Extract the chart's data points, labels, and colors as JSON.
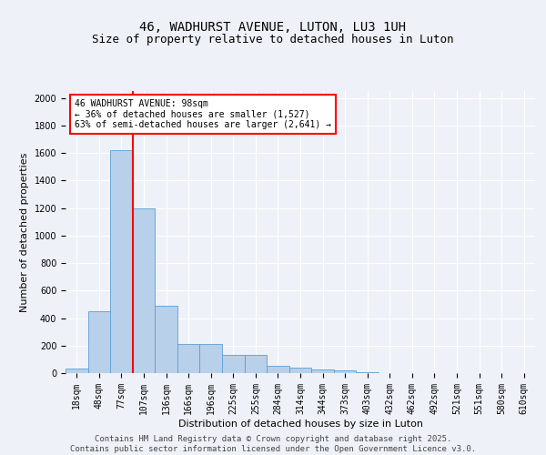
{
  "title_line1": "46, WADHURST AVENUE, LUTON, LU3 1UH",
  "title_line2": "Size of property relative to detached houses in Luton",
  "xlabel": "Distribution of detached houses by size in Luton",
  "ylabel": "Number of detached properties",
  "categories": [
    "18sqm",
    "48sqm",
    "77sqm",
    "107sqm",
    "136sqm",
    "166sqm",
    "196sqm",
    "225sqm",
    "255sqm",
    "284sqm",
    "314sqm",
    "344sqm",
    "373sqm",
    "403sqm",
    "432sqm",
    "462sqm",
    "492sqm",
    "521sqm",
    "551sqm",
    "580sqm",
    "610sqm"
  ],
  "values": [
    35,
    450,
    1620,
    1200,
    490,
    210,
    210,
    135,
    130,
    50,
    40,
    25,
    18,
    5,
    0,
    0,
    0,
    0,
    0,
    0,
    0
  ],
  "bar_color": "#b8d0ea",
  "bar_edge_color": "#5a9fd4",
  "vline_x_idx": 2,
  "vline_color": "red",
  "annotation_text": "46 WADHURST AVENUE: 98sqm\n← 36% of detached houses are smaller (1,527)\n63% of semi-detached houses are larger (2,641) →",
  "annotation_box_color": "white",
  "annotation_box_edge_color": "red",
  "ylim": [
    0,
    2050
  ],
  "yticks": [
    0,
    200,
    400,
    600,
    800,
    1000,
    1200,
    1400,
    1600,
    1800,
    2000
  ],
  "background_color": "#eef2f8",
  "grid_color": "white",
  "footer_line1": "Contains HM Land Registry data © Crown copyright and database right 2025.",
  "footer_line2": "Contains public sector information licensed under the Open Government Licence v3.0.",
  "title_fontsize": 10,
  "subtitle_fontsize": 9,
  "annotation_fontsize": 7,
  "footer_fontsize": 6.5,
  "axis_label_fontsize": 8,
  "tick_fontsize": 7
}
